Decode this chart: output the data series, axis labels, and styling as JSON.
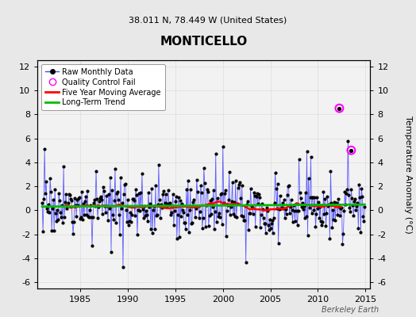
{
  "title": "MONTICELLO",
  "subtitle": "38.011 N, 78.449 W (United States)",
  "ylabel": "Temperature Anomaly (°C)",
  "watermark": "Berkeley Earth",
  "xlim": [
    1980.5,
    2015.5
  ],
  "ylim": [
    -6.5,
    12.5
  ],
  "yticks": [
    -6,
    -4,
    -2,
    0,
    2,
    4,
    6,
    8,
    10,
    12
  ],
  "xticks": [
    1985,
    1990,
    1995,
    2000,
    2005,
    2010,
    2015
  ],
  "bg_color": "#e8e8e8",
  "plot_bg_color": "#f2f2f2",
  "raw_color": "#4444ff",
  "ma_color": "#ff0000",
  "trend_color": "#00bb00",
  "qc_color": "#ff00ff",
  "title_fontsize": 11,
  "subtitle_fontsize": 8,
  "tick_fontsize": 8,
  "seed": 17,
  "qc_points": [
    [
      2012.25,
      8.5
    ],
    [
      2013.5,
      5.0
    ]
  ],
  "years_start": 1981,
  "years_end": 2014
}
